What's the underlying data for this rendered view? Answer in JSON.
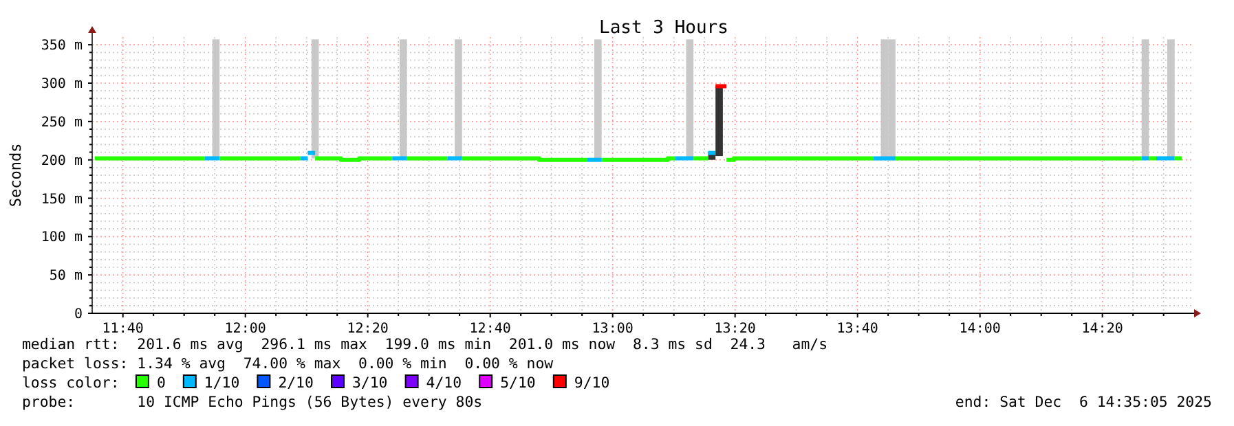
{
  "chart_data": {
    "type": "step",
    "title": "Last 3 Hours",
    "ylabel": "Seconds",
    "legend_title": "loss color:",
    "legend": "bottom",
    "grid": true,
    "xlim": [
      11.583,
      14.583
    ],
    "ylim": [
      0,
      360
    ],
    "xticks": [
      {
        "value": 11.6667,
        "label": "11:40"
      },
      {
        "value": 11.75,
        "label": null
      },
      {
        "value": 11.8333,
        "label": null
      },
      {
        "value": 11.9167,
        "label": null
      },
      {
        "value": 12,
        "label": "12:00"
      },
      {
        "value": 12.0833,
        "label": null
      },
      {
        "value": 12.1667,
        "label": null
      },
      {
        "value": 12.25,
        "label": null
      },
      {
        "value": 12.3333,
        "label": "12:20"
      },
      {
        "value": 12.4167,
        "label": null
      },
      {
        "value": 12.5,
        "label": null
      },
      {
        "value": 12.5833,
        "label": null
      },
      {
        "value": 12.6667,
        "label": "12:40"
      },
      {
        "value": 12.75,
        "label": null
      },
      {
        "value": 12.8333,
        "label": null
      },
      {
        "value": 12.9167,
        "label": null
      },
      {
        "value": 13,
        "label": "13:00"
      },
      {
        "value": 13.0833,
        "label": null
      },
      {
        "value": 13.1667,
        "label": null
      },
      {
        "value": 13.25,
        "label": null
      },
      {
        "value": 13.3333,
        "label": "13:20"
      },
      {
        "value": 13.4167,
        "label": null
      },
      {
        "value": 13.5,
        "label": null
      },
      {
        "value": 13.5833,
        "label": null
      },
      {
        "value": 13.6667,
        "label": "13:40"
      },
      {
        "value": 13.75,
        "label": null
      },
      {
        "value": 13.8333,
        "label": null
      },
      {
        "value": 13.9167,
        "label": null
      },
      {
        "value": 14,
        "label": "14:00"
      },
      {
        "value": 14.0833,
        "label": null
      },
      {
        "value": 14.1667,
        "label": null
      },
      {
        "value": 14.25,
        "label": null
      },
      {
        "value": 14.3333,
        "label": "14:20"
      },
      {
        "value": 14.4167,
        "label": null
      },
      {
        "value": 14.5,
        "label": null
      }
    ],
    "yticks": [
      0,
      {
        "value": 10,
        "label": null
      },
      {
        "value": 20,
        "label": null
      },
      {
        "value": 30,
        "label": null
      },
      {
        "value": 40,
        "label": null
      },
      {
        "value": 50,
        "label": "50 m"
      },
      {
        "value": 60,
        "label": null
      },
      {
        "value": 70,
        "label": null
      },
      {
        "value": 80,
        "label": null
      },
      {
        "value": 90,
        "label": null
      },
      {
        "value": 100,
        "label": "100 m"
      },
      {
        "value": 110,
        "label": null
      },
      {
        "value": 120,
        "label": null
      },
      {
        "value": 130,
        "label": null
      },
      {
        "value": 140,
        "label": null
      },
      {
        "value": 150,
        "label": "150 m"
      },
      {
        "value": 160,
        "label": null
      },
      {
        "value": 170,
        "label": null
      },
      {
        "value": 180,
        "label": null
      },
      {
        "value": 190,
        "label": null
      },
      {
        "value": 200,
        "label": "200 m"
      },
      {
        "value": 210,
        "label": null
      },
      {
        "value": 220,
        "label": null
      },
      {
        "value": 230,
        "label": null
      },
      {
        "value": 240,
        "label": null
      },
      {
        "value": 250,
        "label": "250 m"
      },
      {
        "value": 260,
        "label": null
      },
      {
        "value": 270,
        "label": null
      },
      {
        "value": 280,
        "label": null
      },
      {
        "value": 290,
        "label": null
      },
      {
        "value": 300,
        "label": "300 m"
      },
      {
        "value": 310,
        "label": null
      },
      {
        "value": 320,
        "label": null
      },
      {
        "value": 330,
        "label": null
      },
      {
        "value": 340,
        "label": null
      },
      {
        "value": 350,
        "label": "350 m"
      }
    ],
    "series": [
      {
        "type": "bar",
        "color": "#c8c8c8",
        "x": [
          11.92,
          12.19,
          12.43,
          12.58,
          12.96,
          13.21,
          13.74,
          13.76,
          14.45,
          14.52
        ],
        "base": [
          202,
          202,
          202,
          202,
          200,
          202,
          202,
          202,
          202,
          202
        ],
        "values": [
          155,
          155,
          155,
          155,
          157,
          155,
          155,
          155,
          155,
          155
        ]
      },
      {
        "type": "bar",
        "color": "#333333",
        "x": [
          13.27,
          13.29
        ],
        "base": [
          200,
          205
        ],
        "values": [
          10,
          91
        ]
      },
      {
        "name": "0",
        "color": "#26ff00",
        "x": [
          11.59,
          11.89
        ],
        "values": [
          202,
          202
        ]
      },
      {
        "name": "1/10",
        "color": "#00b8ff",
        "x": [
          11.89,
          11.93
        ],
        "values": [
          202,
          202
        ]
      },
      {
        "name": "2/10",
        "color": "#0059ff"
      },
      {
        "name": "3/10",
        "color": "#5e00ff"
      },
      {
        "name": "4/10",
        "color": "#7e00ff"
      },
      {
        "name": "5/10",
        "color": "#dd00ff"
      },
      {
        "name": "9/10",
        "color": "#ff0000",
        "x": [
          13.28,
          13.31
        ],
        "values": [
          296,
          296
        ]
      },
      {
        "color": "#26ff00",
        "x": [
          11.93,
          12.15
        ],
        "values": [
          202,
          202
        ]
      },
      {
        "color": "#26ff00",
        "x": [
          12.19,
          12.26,
          12.31,
          12.4
        ],
        "values": [
          202,
          200,
          202,
          202
        ]
      },
      {
        "color": "#26ff00",
        "x": [
          12.44,
          12.55
        ],
        "values": [
          202,
          202
        ]
      },
      {
        "color": "#26ff00",
        "x": [
          12.59,
          12.8,
          12.93
        ],
        "values": [
          202,
          200,
          200
        ]
      },
      {
        "color": "#26ff00",
        "x": [
          12.97,
          13.15,
          13.17
        ],
        "values": [
          200,
          202,
          202
        ]
      },
      {
        "color": "#26ff00",
        "x": [
          13.22,
          13.26
        ],
        "values": [
          202,
          202
        ]
      },
      {
        "color": "#26ff00",
        "x": [
          13.31,
          13.33,
          13.71
        ],
        "values": [
          200,
          202,
          202
        ]
      },
      {
        "color": "#26ff00",
        "x": [
          13.77,
          14.44
        ],
        "values": [
          202,
          202
        ]
      },
      {
        "color": "#26ff00",
        "x": [
          14.46,
          14.48
        ],
        "values": [
          202,
          202
        ]
      },
      {
        "color": "#26ff00",
        "x": [
          14.53,
          14.55
        ],
        "values": [
          202,
          202
        ]
      },
      {
        "color": "#00b8ff",
        "x": [
          12.15,
          12.17
        ],
        "values": [
          202,
          202
        ]
      },
      {
        "color": "#00b8ff",
        "x": [
          12.17,
          12.19
        ],
        "values": [
          209,
          209
        ]
      },
      {
        "color": "#00b8ff",
        "x": [
          12.4,
          12.44
        ],
        "values": [
          202,
          202
        ]
      },
      {
        "color": "#00b8ff",
        "x": [
          12.55,
          12.59
        ],
        "values": [
          202,
          202
        ]
      },
      {
        "color": "#00b8ff",
        "x": [
          12.93,
          12.97
        ],
        "values": [
          200,
          200
        ]
      },
      {
        "color": "#00b8ff",
        "x": [
          13.17,
          13.22
        ],
        "values": [
          202,
          202
        ]
      },
      {
        "color": "#00b8ff",
        "x": [
          13.26,
          13.28
        ],
        "values": [
          209,
          209
        ]
      },
      {
        "color": "#00b8ff",
        "x": [
          13.71,
          13.77
        ],
        "values": [
          202,
          202
        ]
      },
      {
        "color": "#00b8ff",
        "x": [
          14.44,
          14.46
        ],
        "values": [
          202,
          202
        ]
      },
      {
        "color": "#00b8ff",
        "x": [
          14.48,
          14.53
        ],
        "values": [
          202,
          202
        ]
      }
    ],
    "annotations": [
      "median rtt:  201.6 ms avg  296.1 ms max  199.0 ms min  201.0 ms now  8.3 ms sd  24.3   am/s",
      "packet loss: 1.34 % avg  74.00 % max  0.00 % min  0.00 % now",
      "probe:       10 ICMP Echo Pings (56 Bytes) every 80s",
      "end: Sat Dec  6 14:35:05 2025"
    ]
  }
}
